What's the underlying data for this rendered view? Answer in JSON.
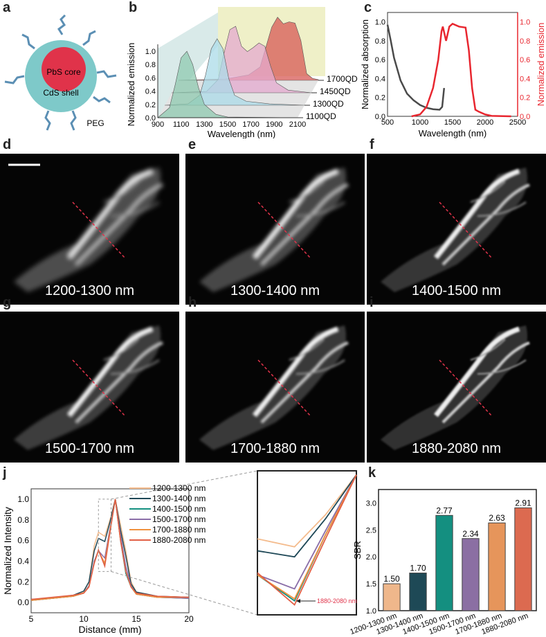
{
  "panels": {
    "a": "a",
    "b": "b",
    "c": "c",
    "d": "d",
    "e": "e",
    "f": "f",
    "g": "g",
    "h": "h",
    "i": "i",
    "j": "j",
    "k": "k"
  },
  "diagram_a": {
    "core": "PbS core",
    "shell": "CdS shell",
    "ligand": "PEG"
  },
  "images": [
    {
      "label": "d",
      "caption": "1200-1300 nm",
      "sharpness": 0.2
    },
    {
      "label": "e",
      "caption": "1300-1400 nm",
      "sharpness": 0.35
    },
    {
      "label": "f",
      "caption": "1400-1500 nm",
      "sharpness": 0.8
    },
    {
      "label": "g",
      "caption": "1500-1700 nm",
      "sharpness": 0.6
    },
    {
      "label": "h",
      "caption": "1700-1880 nm",
      "sharpness": 0.7
    },
    {
      "label": "i",
      "caption": "1880-2080 nm",
      "sharpness": 0.9
    }
  ],
  "colors": {
    "abs": "#4a4a4a",
    "em": "#e8262f"
  },
  "chart_data": [
    {
      "id": "b",
      "type": "area",
      "xlabel": "Wavelength (nm)",
      "ylabel": "Normalized emission",
      "xlim": [
        900,
        2100
      ],
      "ylim": [
        0,
        1.0
      ],
      "xticks": [
        "900",
        "1100",
        "1300",
        "1500",
        "1700",
        "1900",
        "2100"
      ],
      "yticks": [
        "0.0",
        "0.2",
        "0.4",
        "0.6",
        "0.8",
        "1.0"
      ],
      "series": [
        {
          "name": "1100QD",
          "color": "#8fc9b0",
          "x": [
            900,
            1000,
            1050,
            1100,
            1150,
            1200,
            1250,
            1300,
            1400,
            1500,
            2100
          ],
          "y": [
            0,
            0.15,
            0.5,
            0.9,
            1.0,
            0.8,
            0.45,
            0.2,
            0.05,
            0.01,
            0
          ]
        },
        {
          "name": "1300QD",
          "color": "#abdbe8",
          "x": [
            900,
            1100,
            1200,
            1250,
            1300,
            1350,
            1400,
            1450,
            1500,
            1600,
            1800,
            2100
          ],
          "y": [
            0,
            0.02,
            0.15,
            0.45,
            0.85,
            1.0,
            0.85,
            0.4,
            0.15,
            0.06,
            0.02,
            0
          ]
        },
        {
          "name": "1450QD",
          "color": "#e4a9cf",
          "x": [
            900,
            1200,
            1300,
            1350,
            1400,
            1450,
            1500,
            1550,
            1600,
            1650,
            1700,
            1750,
            1800,
            1900,
            2100
          ],
          "y": [
            0,
            0.02,
            0.2,
            0.6,
            0.95,
            1.0,
            0.7,
            0.62,
            0.68,
            0.75,
            0.7,
            0.4,
            0.15,
            0.04,
            0
          ]
        },
        {
          "name": "1700QD",
          "color": "#d75a55",
          "x": [
            900,
            1300,
            1500,
            1600,
            1650,
            1700,
            1750,
            1800,
            1850,
            1900,
            1950,
            2000,
            2050,
            2100
          ],
          "y": [
            0,
            0.02,
            0.08,
            0.2,
            0.5,
            0.8,
            0.95,
            0.85,
            0.88,
            0.86,
            0.6,
            0.1,
            0.03,
            0.01
          ]
        }
      ]
    },
    {
      "id": "c",
      "type": "line",
      "xlabel": "Wavelength (nm)",
      "ylabel": "Normalized absorption",
      "y2label": "Normalized emission",
      "xlim": [
        500,
        2500
      ],
      "ylim": [
        0,
        1.1
      ],
      "xticks": [
        "500",
        "1000",
        "1500",
        "2000",
        "2500"
      ],
      "yticks": [
        "0.0",
        "0.2",
        "0.4",
        "0.6",
        "0.8",
        "1.0"
      ],
      "series": [
        {
          "name": "absorption",
          "axis": "left",
          "x": [
            500,
            550,
            600,
            700,
            800,
            900,
            1000,
            1100,
            1200,
            1300,
            1340,
            1370
          ],
          "y": [
            0.97,
            0.8,
            0.62,
            0.38,
            0.24,
            0.17,
            0.12,
            0.09,
            0.075,
            0.07,
            0.1,
            0.3
          ]
        },
        {
          "name": "emission",
          "axis": "right",
          "x": [
            870,
            1000,
            1100,
            1200,
            1280,
            1330,
            1350,
            1400,
            1450,
            1500,
            1600,
            1700,
            1750,
            1800,
            1850,
            1900,
            2000,
            2100,
            2400
          ],
          "y": [
            0,
            0.02,
            0.1,
            0.3,
            0.6,
            0.9,
            0.95,
            0.8,
            0.95,
            0.98,
            0.95,
            0.94,
            0.7,
            0.3,
            0.07,
            0.05,
            0.02,
            0.005,
            0
          ]
        }
      ]
    },
    {
      "id": "j",
      "type": "line",
      "xlabel": "Distance (mm)",
      "ylabel": "Normalized Intensity",
      "xlim": [
        5,
        20
      ],
      "ylim": [
        -0.1,
        1.1
      ],
      "xticks": [
        "5",
        "10",
        "15",
        "20"
      ],
      "yticks": [
        "0.0",
        "0.2",
        "0.4",
        "0.6",
        "0.8",
        "1.0"
      ],
      "x": [
        5,
        7,
        9,
        10,
        10.5,
        11,
        11.4,
        12,
        12.5,
        13,
        13.5,
        14,
        14.5,
        15,
        17,
        20
      ],
      "series": [
        {
          "name": "1200-1300 nm",
          "color": "#f4bb8c",
          "y": [
            0.02,
            0.04,
            0.06,
            0.1,
            0.2,
            0.55,
            0.68,
            0.64,
            0.8,
            1.0,
            0.75,
            0.5,
            0.2,
            0.1,
            0.05,
            0.04
          ]
        },
        {
          "name": "1300-1400 nm",
          "color": "#1d4756",
          "y": [
            0.03,
            0.04,
            0.07,
            0.11,
            0.2,
            0.5,
            0.62,
            0.59,
            0.78,
            1.0,
            0.7,
            0.45,
            0.18,
            0.1,
            0.06,
            0.05
          ]
        },
        {
          "name": "1400-1500 nm",
          "color": "#159080",
          "y": [
            0.02,
            0.04,
            0.06,
            0.09,
            0.16,
            0.4,
            0.5,
            0.37,
            0.7,
            1.0,
            0.6,
            0.28,
            0.15,
            0.08,
            0.05,
            0.04
          ]
        },
        {
          "name": "1500-1700 nm",
          "color": "#8a6ea8",
          "y": [
            0.02,
            0.04,
            0.06,
            0.09,
            0.16,
            0.4,
            0.5,
            0.43,
            0.72,
            1.0,
            0.65,
            0.35,
            0.16,
            0.08,
            0.05,
            0.04
          ]
        },
        {
          "name": "1700-1880 nm",
          "color": "#f0913e",
          "y": [
            0.02,
            0.04,
            0.06,
            0.09,
            0.15,
            0.38,
            0.5,
            0.38,
            0.7,
            1.0,
            0.6,
            0.3,
            0.15,
            0.08,
            0.05,
            0.05
          ]
        },
        {
          "name": "1880-2080 nm",
          "color": "#e25f45",
          "y": [
            0.03,
            0.05,
            0.07,
            0.09,
            0.15,
            0.38,
            0.51,
            0.35,
            0.68,
            1.0,
            0.6,
            0.3,
            0.15,
            0.09,
            0.06,
            0.05
          ]
        }
      ],
      "inset": {
        "xlim": [
          11.4,
          13
        ],
        "ylim": [
          0.3,
          1.02
        ],
        "annotation": "1880-2080 nm"
      }
    },
    {
      "id": "k",
      "type": "bar",
      "ylabel": "SBR",
      "ylim": [
        1.0,
        3.25
      ],
      "yticks": [
        "1.0",
        "1.5",
        "2.0",
        "2.5",
        "3.0"
      ],
      "categories": [
        "1200-1300 nm",
        "1300-1400 nm",
        "1400-1500 nm",
        "1500-1700 nm",
        "1700-1880 nm",
        "1880-2080 nm"
      ],
      "values": [
        1.5,
        1.7,
        2.77,
        2.34,
        2.63,
        2.91
      ],
      "labels": [
        "1.50",
        "1.70",
        "2.77",
        "2.34",
        "2.63",
        "2.91"
      ],
      "colors": [
        "#efb78b",
        "#1e4956",
        "#148f80",
        "#8b6fa3",
        "#e6955b",
        "#dc6a50"
      ]
    }
  ]
}
